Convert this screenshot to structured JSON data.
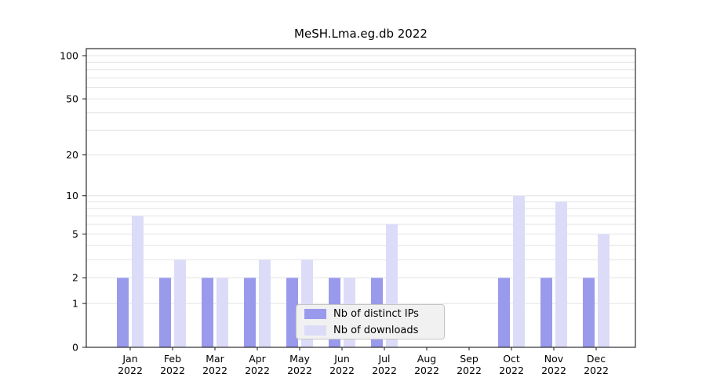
{
  "title": "MeSH.Lma.eg.db 2022",
  "legend": {
    "items": [
      {
        "label": "Nb of distinct IPs",
        "color": "#9a9aec"
      },
      {
        "label": "Nb of downloads",
        "color": "#dcdcf8"
      }
    ]
  },
  "colors": {
    "grid": "#e3e3e3",
    "frame": "#1a1a1a",
    "text": "#000000",
    "bar_ips": "#9a9aec",
    "bar_downloads": "#dcdcf8",
    "legend_bg": "#f1f1f1",
    "legend_border": "#c4c4c4"
  },
  "axes": {
    "months": [
      "Jan",
      "Feb",
      "Mar",
      "Apr",
      "May",
      "Jun",
      "Jul",
      "Aug",
      "Sep",
      "Oct",
      "Nov",
      "Dec"
    ],
    "year": "2022",
    "y_ticks": [
      0,
      1,
      2,
      5,
      10,
      20,
      50,
      100
    ],
    "gridline_values": [
      1,
      2,
      3,
      4,
      5,
      6,
      7,
      8,
      9,
      10,
      20,
      30,
      40,
      50,
      60,
      70,
      80,
      90,
      100
    ]
  },
  "chart_data": {
    "type": "bar",
    "title": "MeSH.Lma.eg.db 2022",
    "categories": [
      "Jan 2022",
      "Feb 2022",
      "Mar 2022",
      "Apr 2022",
      "May 2022",
      "Jun 2022",
      "Jul 2022",
      "Aug 2022",
      "Sep 2022",
      "Oct 2022",
      "Nov 2022",
      "Dec 2022"
    ],
    "series": [
      {
        "name": "Nb of distinct IPs",
        "color": "#9a9aec",
        "values": [
          2,
          2,
          2,
          2,
          2,
          2,
          2,
          0,
          0,
          2,
          2,
          2
        ]
      },
      {
        "name": "Nb of downloads",
        "color": "#dcdcf8",
        "values": [
          7,
          3,
          2,
          3,
          3,
          2,
          6,
          0,
          0,
          10,
          9,
          5
        ]
      }
    ],
    "xlabel": "",
    "ylabel": "",
    "y_scale": "log10(x+1)",
    "y_tick_labels": [
      "0",
      "1",
      "2",
      "5",
      "10",
      "20",
      "50",
      "100"
    ],
    "ylim": [
      0,
      100
    ],
    "grid": true,
    "legend_position": "bottom-center-inside"
  }
}
